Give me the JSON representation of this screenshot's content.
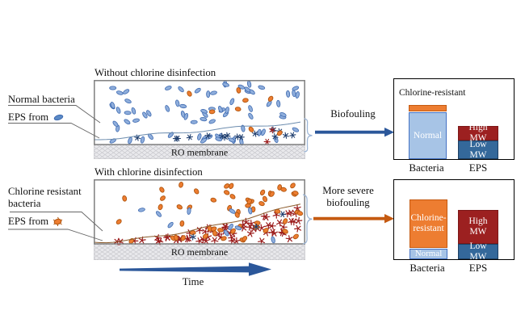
{
  "colors": {
    "normal_fill": "#8FAEDC",
    "normal_stroke": "#3E6AB0",
    "legend_oval_fill": "#5B8AC6",
    "resistant_fill": "#ED7D31",
    "resistant_stroke": "#B0550E",
    "eps_navy": "#1F3E6E",
    "eps_red": "#9B1B1B",
    "arrow_blue": "#2B579A",
    "arrow_orange": "#C55A11",
    "brace": "#9DB6D6",
    "membrane_fill": "#E9E9EC",
    "membrane_hatch": "#C6C6CB",
    "membrane_border": "#B5B5BA",
    "panel_border": "#7F7F7F",
    "biofilm_line_top": "#6C8CAE",
    "biofilm_line_bottom": "#8A5A2B",
    "callout_line": "#666666",
    "bar_normal": "#A7C4E6",
    "bar_normal_border": "#4472C4",
    "bar_orange": "#ED7D31",
    "bar_orange_border": "#C55A11",
    "bar_red": "#9C2020",
    "bar_red_border": "#7C1717",
    "bar_steel": "#34689A",
    "bar_steel_border": "#1D3F63"
  },
  "panel_top": {
    "title": "Without chlorine disinfection",
    "membrane_label": "RO membrane"
  },
  "panel_bottom": {
    "title": "With chlorine disinfection",
    "membrane_label": "RO membrane"
  },
  "legend_top": {
    "bacteria_label": "Normal bacteria",
    "eps_label": "EPS from"
  },
  "legend_bottom": {
    "bacteria_label": "Chlorine resistant bacteria",
    "eps_label": "EPS from"
  },
  "arrows": {
    "biofouling": "Biofouling",
    "severe_line1": "More severe",
    "severe_line2": "biofouling",
    "time": "Time"
  },
  "chart_data": [
    {
      "id": "without_chlorine_disinfection",
      "type": "bar",
      "title": "Biofouling",
      "categories": [
        "Bacteria",
        "EPS"
      ],
      "stacks": {
        "Bacteria": [
          {
            "label": "Chlorine-resistant",
            "value": 8
          },
          {
            "label": "Normal",
            "value": 58
          }
        ],
        "EPS": [
          {
            "label": "High MW",
            "value": 18
          },
          {
            "label": "Low MW",
            "value": 23
          }
        ]
      },
      "value_units": "relative amount (no numeric axis shown)",
      "annotation": "Chlorine-resistant"
    },
    {
      "id": "with_chlorine_disinfection",
      "type": "bar",
      "title": "More severe biofouling",
      "categories": [
        "Bacteria",
        "EPS"
      ],
      "stacks": {
        "Bacteria": [
          {
            "label": "Chlorine-resistant",
            "value": 60
          },
          {
            "label": "Normal",
            "value": 13
          }
        ],
        "EPS": [
          {
            "label": "High MW",
            "value": 42
          },
          {
            "label": "Low MW",
            "value": 19
          }
        ]
      },
      "value_units": "relative amount (no numeric axis shown)",
      "annotation": null
    }
  ],
  "scatter": {
    "seed": 11,
    "top": {
      "bulk_normal": 54,
      "bulk_resistant": 6,
      "film_normal": 20,
      "film_eps": 16,
      "film_eps_red": 2,
      "film_resistant": 2
    },
    "bottom": {
      "bulk_resistant": 33,
      "bulk_normal": 6,
      "wedge_star": 66,
      "wedge_resistant": 24,
      "wedge_normal": 4,
      "wedge_eps_blue": 3
    }
  }
}
